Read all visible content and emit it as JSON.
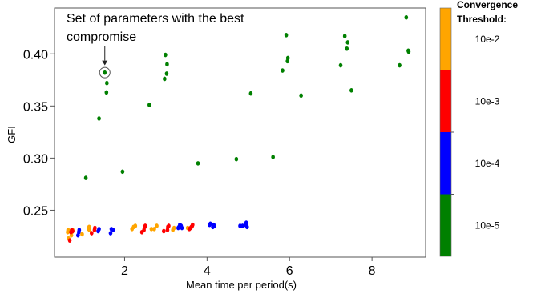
{
  "chart_data": {
    "type": "scatter",
    "xlabel": "Mean time per period(s)",
    "ylabel": "GFI",
    "xlim": [
      0.3,
      9.3
    ],
    "ylim": [
      0.205,
      0.444
    ],
    "x_ticks": [
      "2",
      "4",
      "6",
      "8"
    ],
    "y_ticks": [
      "0.25",
      "0.30",
      "0.35",
      "0.40"
    ],
    "grid": false,
    "annotation": {
      "text_line1": "Set of parameters with the best",
      "text_line2": "compromise",
      "target": {
        "x": 1.52,
        "y": 0.382
      }
    },
    "colorbar": {
      "title_line1": "Convergence",
      "title_line2": "Threshold:",
      "levels": [
        {
          "label": "10e-2",
          "color": "#ffa500"
        },
        {
          "label": "10e-3",
          "color": "#ff0000"
        },
        {
          "label": "10e-4",
          "color": "#0000ff"
        },
        {
          "label": "10e-5",
          "color": "#008000"
        }
      ]
    },
    "series": [
      {
        "color": "#008000",
        "points": [
          [
            1.06,
            0.281
          ],
          [
            1.38,
            0.338
          ],
          [
            1.52,
            0.382
          ],
          [
            1.56,
            0.363
          ],
          [
            1.57,
            0.372
          ],
          [
            1.95,
            0.287
          ],
          [
            2.6,
            0.351
          ],
          [
            2.97,
            0.376
          ],
          [
            2.99,
            0.399
          ],
          [
            3.02,
            0.381
          ],
          [
            3.03,
            0.39
          ],
          [
            3.78,
            0.295
          ],
          [
            4.71,
            0.299
          ],
          [
            5.06,
            0.362
          ],
          [
            5.6,
            0.301
          ],
          [
            5.83,
            0.384
          ],
          [
            5.92,
            0.418
          ],
          [
            5.95,
            0.393
          ],
          [
            5.96,
            0.396
          ],
          [
            6.28,
            0.36
          ],
          [
            7.24,
            0.389
          ],
          [
            7.34,
            0.417
          ],
          [
            7.39,
            0.405
          ],
          [
            7.41,
            0.411
          ],
          [
            7.5,
            0.365
          ],
          [
            8.67,
            0.389
          ],
          [
            8.83,
            0.435
          ],
          [
            8.88,
            0.403
          ],
          [
            8.89,
            0.402
          ]
        ]
      },
      {
        "color": "#ffa500",
        "points": [
          [
            0.62,
            0.229
          ],
          [
            0.63,
            0.231
          ],
          [
            0.64,
            0.223
          ],
          [
            0.66,
            0.23
          ],
          [
            0.71,
            0.226
          ],
          [
            0.72,
            0.229
          ],
          [
            0.74,
            0.231
          ],
          [
            0.97,
            0.227
          ],
          [
            1.13,
            0.232
          ],
          [
            1.14,
            0.234
          ],
          [
            1.15,
            0.231
          ],
          [
            2.18,
            0.232
          ],
          [
            2.22,
            0.234
          ],
          [
            2.26,
            0.235
          ],
          [
            2.65,
            0.232
          ],
          [
            2.72,
            0.232
          ],
          [
            2.78,
            0.235
          ],
          [
            3.17,
            0.231
          ],
          [
            3.2,
            0.233
          ],
          [
            3.53,
            0.233
          ]
        ]
      },
      {
        "color": "#ff0000",
        "points": [
          [
            0.67,
            0.221
          ],
          [
            0.7,
            0.229
          ],
          [
            0.72,
            0.231
          ],
          [
            0.74,
            0.23
          ],
          [
            1.2,
            0.228
          ],
          [
            1.27,
            0.231
          ],
          [
            1.28,
            0.233
          ],
          [
            2.42,
            0.229
          ],
          [
            2.47,
            0.231
          ],
          [
            2.49,
            0.234
          ],
          [
            2.5,
            0.235
          ],
          [
            2.95,
            0.23
          ],
          [
            3.04,
            0.231
          ],
          [
            3.05,
            0.234
          ],
          [
            3.07,
            0.235
          ],
          [
            3.57,
            0.232
          ],
          [
            3.6,
            0.233
          ],
          [
            3.62,
            0.234
          ],
          [
            3.64,
            0.235
          ],
          [
            3.65,
            0.236
          ]
        ]
      },
      {
        "color": "#0000ff",
        "points": [
          [
            0.87,
            0.226
          ],
          [
            0.89,
            0.229
          ],
          [
            0.9,
            0.231
          ],
          [
            1.36,
            0.23
          ],
          [
            1.38,
            0.232
          ],
          [
            1.66,
            0.228
          ],
          [
            1.68,
            0.232
          ],
          [
            1.72,
            0.231
          ],
          [
            3.3,
            0.233
          ],
          [
            3.32,
            0.234
          ],
          [
            3.34,
            0.236
          ],
          [
            3.37,
            0.235
          ],
          [
            3.39,
            0.233
          ],
          [
            4.06,
            0.236
          ],
          [
            4.08,
            0.237
          ],
          [
            4.14,
            0.234
          ],
          [
            4.16,
            0.236
          ],
          [
            4.18,
            0.235
          ],
          [
            4.8,
            0.235
          ],
          [
            4.86,
            0.235
          ],
          [
            4.93,
            0.236
          ],
          [
            4.95,
            0.238
          ],
          [
            4.96,
            0.237
          ],
          [
            4.97,
            0.234
          ]
        ]
      }
    ]
  }
}
